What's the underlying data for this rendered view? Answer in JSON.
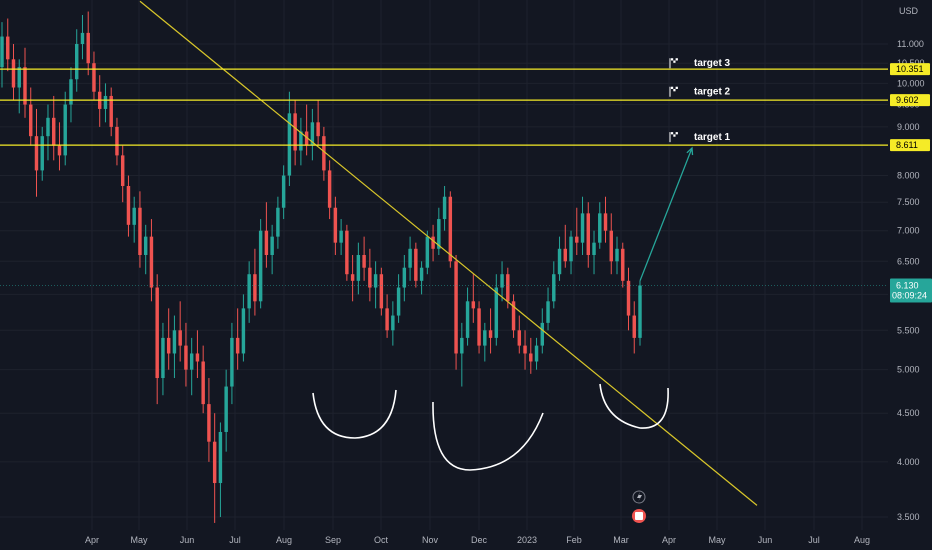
{
  "chart_data": {
    "type": "candlestick",
    "currency": "USD",
    "y_axis": {
      "scale": "log",
      "range": [
        3.35,
        11.9
      ],
      "ticks": [
        "3.500",
        "4.000",
        "4.500",
        "5.000",
        "5.500",
        "6.000",
        "6.500",
        "7.000",
        "7.500",
        "8.000",
        "9.000",
        "9.500",
        "10.000",
        "10.500",
        "11.000"
      ]
    },
    "x_axis": {
      "labels": [
        "Apr",
        "May",
        "Jun",
        "Jul",
        "Aug",
        "Sep",
        "Oct",
        "Nov",
        "Dec",
        "2023",
        "Feb",
        "Mar",
        "Apr",
        "May",
        "Jun",
        "Jul",
        "Aug"
      ]
    },
    "horizontal_levels": [
      {
        "price": 10.351,
        "label": "10.351",
        "color": "#f5eb27"
      },
      {
        "price": 9.602,
        "label": "9.602",
        "color": "#f5eb27"
      },
      {
        "price": 8.611,
        "label": "8.611",
        "color": "#f5eb27"
      }
    ],
    "targets": [
      {
        "label": "target 3",
        "price": 10.5
      },
      {
        "label": "target 2",
        "price": 9.8
      },
      {
        "label": "target 1",
        "price": 8.78
      }
    ],
    "last_price": {
      "value": "6.130",
      "countdown": "08:09:24"
    },
    "trendline": {
      "from": {
        "date": "Mar 2022",
        "price": 12.2
      },
      "to": {
        "date": "Jun 2023",
        "price": 3.6
      },
      "color": "#d8c62a"
    },
    "projection_arrow": {
      "from": {
        "date": "Mar 2023",
        "price": 6.2
      },
      "to": {
        "date": "Apr 2023",
        "price": 8.55
      },
      "color": "#26a69a"
    },
    "pattern_arcs": 3,
    "colors": {
      "background": "#131722",
      "up": "#26a69a",
      "down": "#ef5350",
      "level": "#f5eb27",
      "level_badge": "#f5eb27",
      "price_badge": "#26a69a",
      "arc": "#ffffff"
    },
    "candles": [
      {
        "o": 10.4,
        "h": 11.6,
        "l": 9.9,
        "c": 11.2
      },
      {
        "o": 11.2,
        "h": 11.7,
        "l": 10.3,
        "c": 10.6
      },
      {
        "o": 10.6,
        "h": 11.0,
        "l": 9.6,
        "c": 9.9
      },
      {
        "o": 9.9,
        "h": 10.6,
        "l": 9.3,
        "c": 10.4
      },
      {
        "o": 10.4,
        "h": 10.9,
        "l": 9.2,
        "c": 9.5
      },
      {
        "o": 9.5,
        "h": 9.9,
        "l": 8.6,
        "c": 8.8
      },
      {
        "o": 8.8,
        "h": 9.4,
        "l": 7.6,
        "c": 8.1
      },
      {
        "o": 8.1,
        "h": 9.0,
        "l": 7.9,
        "c": 8.8
      },
      {
        "o": 8.8,
        "h": 9.5,
        "l": 8.3,
        "c": 9.2
      },
      {
        "o": 9.2,
        "h": 9.7,
        "l": 8.3,
        "c": 8.6
      },
      {
        "o": 8.6,
        "h": 9.1,
        "l": 8.1,
        "c": 8.4
      },
      {
        "o": 8.4,
        "h": 9.8,
        "l": 8.2,
        "c": 9.5
      },
      {
        "o": 9.5,
        "h": 10.4,
        "l": 9.1,
        "c": 10.1
      },
      {
        "o": 10.1,
        "h": 11.4,
        "l": 9.8,
        "c": 11.0
      },
      {
        "o": 11.0,
        "h": 11.8,
        "l": 10.6,
        "c": 11.3
      },
      {
        "o": 11.3,
        "h": 11.9,
        "l": 10.2,
        "c": 10.5
      },
      {
        "o": 10.5,
        "h": 10.8,
        "l": 9.6,
        "c": 9.8
      },
      {
        "o": 9.8,
        "h": 10.2,
        "l": 9.0,
        "c": 9.4
      },
      {
        "o": 9.4,
        "h": 10.0,
        "l": 9.1,
        "c": 9.7
      },
      {
        "o": 9.7,
        "h": 9.9,
        "l": 8.8,
        "c": 9.0
      },
      {
        "o": 9.0,
        "h": 9.2,
        "l": 8.2,
        "c": 8.4
      },
      {
        "o": 8.4,
        "h": 8.6,
        "l": 7.5,
        "c": 7.8
      },
      {
        "o": 7.8,
        "h": 8.0,
        "l": 6.9,
        "c": 7.1
      },
      {
        "o": 7.1,
        "h": 7.6,
        "l": 6.8,
        "c": 7.4
      },
      {
        "o": 7.4,
        "h": 7.7,
        "l": 6.4,
        "c": 6.6
      },
      {
        "o": 6.6,
        "h": 7.1,
        "l": 6.3,
        "c": 6.9
      },
      {
        "o": 6.9,
        "h": 7.2,
        "l": 5.9,
        "c": 6.1
      },
      {
        "o": 6.1,
        "h": 6.3,
        "l": 4.6,
        "c": 4.9
      },
      {
        "o": 4.9,
        "h": 5.6,
        "l": 4.7,
        "c": 5.4
      },
      {
        "o": 5.4,
        "h": 5.8,
        "l": 5.0,
        "c": 5.2
      },
      {
        "o": 5.2,
        "h": 5.7,
        "l": 4.9,
        "c": 5.5
      },
      {
        "o": 5.5,
        "h": 5.9,
        "l": 5.1,
        "c": 5.3
      },
      {
        "o": 5.3,
        "h": 5.6,
        "l": 4.8,
        "c": 5.0
      },
      {
        "o": 5.0,
        "h": 5.4,
        "l": 4.7,
        "c": 5.2
      },
      {
        "o": 5.2,
        "h": 5.5,
        "l": 4.9,
        "c": 5.1
      },
      {
        "o": 5.1,
        "h": 5.3,
        "l": 4.5,
        "c": 4.6
      },
      {
        "o": 4.6,
        "h": 4.9,
        "l": 4.0,
        "c": 4.2
      },
      {
        "o": 4.2,
        "h": 4.5,
        "l": 3.45,
        "c": 3.8
      },
      {
        "o": 3.8,
        "h": 4.4,
        "l": 3.5,
        "c": 4.3
      },
      {
        "o": 4.3,
        "h": 5.0,
        "l": 4.1,
        "c": 4.8
      },
      {
        "o": 4.8,
        "h": 5.6,
        "l": 4.6,
        "c": 5.4
      },
      {
        "o": 5.4,
        "h": 5.8,
        "l": 5.0,
        "c": 5.2
      },
      {
        "o": 5.2,
        "h": 6.0,
        "l": 5.1,
        "c": 5.8
      },
      {
        "o": 5.8,
        "h": 6.5,
        "l": 5.6,
        "c": 6.3
      },
      {
        "o": 6.3,
        "h": 6.7,
        "l": 5.7,
        "c": 5.9
      },
      {
        "o": 5.9,
        "h": 7.2,
        "l": 5.8,
        "c": 7.0
      },
      {
        "o": 7.0,
        "h": 7.5,
        "l": 6.4,
        "c": 6.6
      },
      {
        "o": 6.6,
        "h": 7.1,
        "l": 6.3,
        "c": 6.9
      },
      {
        "o": 6.9,
        "h": 7.6,
        "l": 6.7,
        "c": 7.4
      },
      {
        "o": 7.4,
        "h": 8.2,
        "l": 7.2,
        "c": 8.0
      },
      {
        "o": 8.0,
        "h": 9.8,
        "l": 7.8,
        "c": 9.3
      },
      {
        "o": 9.3,
        "h": 9.6,
        "l": 8.2,
        "c": 8.5
      },
      {
        "o": 8.5,
        "h": 9.2,
        "l": 8.2,
        "c": 8.9
      },
      {
        "o": 8.9,
        "h": 9.5,
        "l": 8.4,
        "c": 8.6
      },
      {
        "o": 8.6,
        "h": 9.4,
        "l": 8.3,
        "c": 9.1
      },
      {
        "o": 9.1,
        "h": 9.6,
        "l": 8.6,
        "c": 8.8
      },
      {
        "o": 8.8,
        "h": 9.0,
        "l": 7.9,
        "c": 8.1
      },
      {
        "o": 8.1,
        "h": 8.3,
        "l": 7.2,
        "c": 7.4
      },
      {
        "o": 7.4,
        "h": 7.6,
        "l": 6.6,
        "c": 6.8
      },
      {
        "o": 6.8,
        "h": 7.2,
        "l": 6.6,
        "c": 7.0
      },
      {
        "o": 7.0,
        "h": 7.1,
        "l": 6.2,
        "c": 6.3
      },
      {
        "o": 6.3,
        "h": 6.6,
        "l": 5.9,
        "c": 6.2
      },
      {
        "o": 6.2,
        "h": 6.8,
        "l": 6.0,
        "c": 6.6
      },
      {
        "o": 6.6,
        "h": 6.9,
        "l": 6.2,
        "c": 6.4
      },
      {
        "o": 6.4,
        "h": 6.7,
        "l": 5.9,
        "c": 6.1
      },
      {
        "o": 6.1,
        "h": 6.5,
        "l": 5.8,
        "c": 6.3
      },
      {
        "o": 6.3,
        "h": 6.4,
        "l": 5.7,
        "c": 5.8
      },
      {
        "o": 5.8,
        "h": 6.0,
        "l": 5.4,
        "c": 5.5
      },
      {
        "o": 5.5,
        "h": 5.9,
        "l": 5.3,
        "c": 5.7
      },
      {
        "o": 5.7,
        "h": 6.3,
        "l": 5.6,
        "c": 6.1
      },
      {
        "o": 6.1,
        "h": 6.6,
        "l": 5.9,
        "c": 6.4
      },
      {
        "o": 6.4,
        "h": 6.9,
        "l": 6.2,
        "c": 6.7
      },
      {
        "o": 6.7,
        "h": 6.8,
        "l": 6.1,
        "c": 6.2
      },
      {
        "o": 6.2,
        "h": 6.5,
        "l": 6.0,
        "c": 6.4
      },
      {
        "o": 6.4,
        "h": 7.0,
        "l": 6.3,
        "c": 6.9
      },
      {
        "o": 6.9,
        "h": 7.1,
        "l": 6.5,
        "c": 6.7
      },
      {
        "o": 6.7,
        "h": 7.4,
        "l": 6.6,
        "c": 7.2
      },
      {
        "o": 7.2,
        "h": 7.8,
        "l": 7.0,
        "c": 7.6
      },
      {
        "o": 7.6,
        "h": 7.7,
        "l": 6.4,
        "c": 6.5
      },
      {
        "o": 6.5,
        "h": 6.6,
        "l": 5.0,
        "c": 5.2
      },
      {
        "o": 5.2,
        "h": 5.6,
        "l": 4.8,
        "c": 5.4
      },
      {
        "o": 5.4,
        "h": 6.1,
        "l": 5.3,
        "c": 5.9
      },
      {
        "o": 5.9,
        "h": 6.3,
        "l": 5.6,
        "c": 5.8
      },
      {
        "o": 5.8,
        "h": 5.9,
        "l": 5.2,
        "c": 5.3
      },
      {
        "o": 5.3,
        "h": 5.6,
        "l": 5.1,
        "c": 5.5
      },
      {
        "o": 5.5,
        "h": 5.8,
        "l": 5.2,
        "c": 5.4
      },
      {
        "o": 5.4,
        "h": 6.3,
        "l": 5.3,
        "c": 6.1
      },
      {
        "o": 6.1,
        "h": 6.5,
        "l": 5.9,
        "c": 6.3
      },
      {
        "o": 6.3,
        "h": 6.4,
        "l": 5.8,
        "c": 5.9
      },
      {
        "o": 5.9,
        "h": 6.0,
        "l": 5.4,
        "c": 5.5
      },
      {
        "o": 5.5,
        "h": 5.7,
        "l": 5.2,
        "c": 5.3
      },
      {
        "o": 5.3,
        "h": 5.5,
        "l": 5.0,
        "c": 5.2
      },
      {
        "o": 5.2,
        "h": 5.4,
        "l": 4.95,
        "c": 5.1
      },
      {
        "o": 5.1,
        "h": 5.4,
        "l": 5.0,
        "c": 5.3
      },
      {
        "o": 5.3,
        "h": 5.8,
        "l": 5.2,
        "c": 5.6
      },
      {
        "o": 5.6,
        "h": 6.1,
        "l": 5.5,
        "c": 5.9
      },
      {
        "o": 5.9,
        "h": 6.5,
        "l": 5.8,
        "c": 6.3
      },
      {
        "o": 6.3,
        "h": 6.9,
        "l": 6.2,
        "c": 6.7
      },
      {
        "o": 6.7,
        "h": 7.1,
        "l": 6.4,
        "c": 6.5
      },
      {
        "o": 6.5,
        "h": 7.0,
        "l": 6.3,
        "c": 6.9
      },
      {
        "o": 6.9,
        "h": 7.4,
        "l": 6.6,
        "c": 6.8
      },
      {
        "o": 6.8,
        "h": 7.6,
        "l": 6.6,
        "c": 7.3
      },
      {
        "o": 7.3,
        "h": 7.5,
        "l": 6.4,
        "c": 6.6
      },
      {
        "o": 6.6,
        "h": 7.0,
        "l": 6.3,
        "c": 6.8
      },
      {
        "o": 6.8,
        "h": 7.5,
        "l": 6.7,
        "c": 7.3
      },
      {
        "o": 7.3,
        "h": 7.6,
        "l": 6.8,
        "c": 7.0
      },
      {
        "o": 7.0,
        "h": 7.3,
        "l": 6.3,
        "c": 6.5
      },
      {
        "o": 6.5,
        "h": 6.9,
        "l": 6.3,
        "c": 6.7
      },
      {
        "o": 6.7,
        "h": 6.8,
        "l": 6.1,
        "c": 6.2
      },
      {
        "o": 6.2,
        "h": 6.4,
        "l": 5.5,
        "c": 5.7
      },
      {
        "o": 5.7,
        "h": 5.9,
        "l": 5.2,
        "c": 5.4
      },
      {
        "o": 5.4,
        "h": 6.2,
        "l": 5.3,
        "c": 6.13
      }
    ]
  }
}
